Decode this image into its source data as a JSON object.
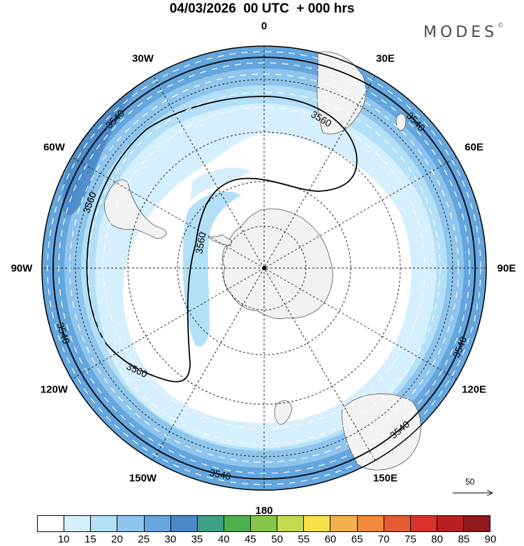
{
  "title": "04/03/2026  00 UTC  + 000 hrs",
  "brand": {
    "name": "MODES",
    "mark": "©"
  },
  "map": {
    "projection": "south polar stereographic",
    "longitude_labels": [
      {
        "id": "0",
        "text": "0",
        "lon": 0
      },
      {
        "id": "30e",
        "text": "30E",
        "lon": 30
      },
      {
        "id": "60e",
        "text": "60E",
        "lon": 60
      },
      {
        "id": "90e",
        "text": "90E",
        "lon": 90
      },
      {
        "id": "120e",
        "text": "120E",
        "lon": 120
      },
      {
        "id": "150e",
        "text": "150E",
        "lon": 150
      },
      {
        "id": "180",
        "text": "180",
        "lon": 180
      },
      {
        "id": "150w",
        "text": "150W",
        "lon": -150
      },
      {
        "id": "120w",
        "text": "120W",
        "lon": -120
      },
      {
        "id": "90w",
        "text": "90W",
        "lon": -90
      },
      {
        "id": "60w",
        "text": "60W",
        "lon": -60
      },
      {
        "id": "30w",
        "text": "30W",
        "lon": -30
      }
    ],
    "contour_labels": [
      {
        "id": "3540-nw",
        "text": "3540",
        "lon": -45
      },
      {
        "id": "3540-ne",
        "text": "3540",
        "lon": 46
      },
      {
        "id": "3540-w",
        "text": "3540",
        "lon": -108
      },
      {
        "id": "3540-se1",
        "text": "3540",
        "lon": 112
      },
      {
        "id": "3540-se2",
        "text": "3540",
        "lon": 140
      },
      {
        "id": "3540-s",
        "text": "3540",
        "lon": -168
      },
      {
        "id": "3560-n",
        "text": "3560",
        "lon": 20
      },
      {
        "id": "3560-w",
        "text": "3560",
        "lon": -72
      },
      {
        "id": "3560-inner",
        "text": "3560",
        "lon": -78
      },
      {
        "id": "3560-sw",
        "text": "3560",
        "lon": -140
      }
    ],
    "reference_vector": {
      "label": "50"
    }
  },
  "colorbar": {
    "colors": [
      "#ffffff",
      "#d6effc",
      "#b3e0f7",
      "#8ec5ec",
      "#64a6dd",
      "#4a89c7",
      "#3fa087",
      "#4cb04f",
      "#85c447",
      "#c4d94f",
      "#f7e14a",
      "#f4b04a",
      "#f08a3a",
      "#e55b32",
      "#d8322b",
      "#b81f24",
      "#8e1a1c"
    ],
    "labels": [
      "10",
      "15",
      "20",
      "25",
      "30",
      "35",
      "40",
      "45",
      "50",
      "55",
      "60",
      "65",
      "70",
      "75",
      "80",
      "85",
      "90"
    ],
    "label_positions": [
      1,
      2,
      3,
      4,
      5,
      6,
      7,
      8,
      9,
      10,
      11,
      12,
      13,
      14,
      15,
      16,
      17
    ]
  }
}
